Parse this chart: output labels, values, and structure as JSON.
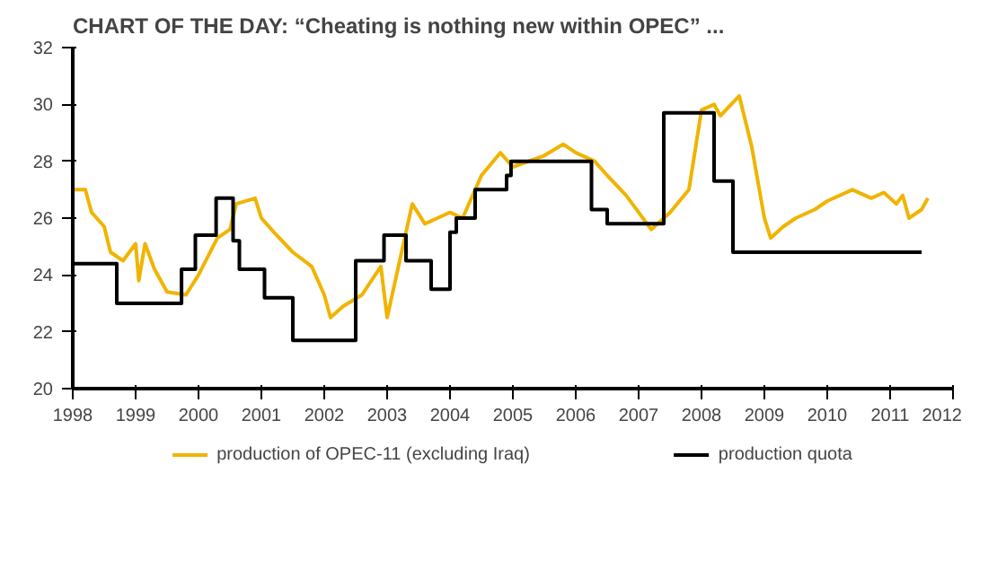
{
  "chart_data": {
    "type": "line",
    "title": "CHART OF THE DAY: “Cheating is nothing new within OPEC” ...",
    "xlim": [
      1998,
      2012
    ],
    "xticks": [
      1998,
      1999,
      2000,
      2001,
      2002,
      2003,
      2004,
      2005,
      2006,
      2007,
      2008,
      2009,
      2010,
      2011,
      2012
    ],
    "ylim": [
      20,
      32
    ],
    "yticks": [
      20,
      22,
      24,
      26,
      28,
      30,
      32
    ],
    "grid": false,
    "legend": "bottom",
    "marker": "none",
    "line_style": "solid",
    "series": [
      {
        "name": "production of OPEC-11 (excluding Iraq)",
        "color": "#f0b400",
        "x": [
          1998.0,
          1998.2,
          1998.3,
          1998.5,
          1998.6,
          1998.8,
          1999.0,
          1999.05,
          1999.15,
          1999.3,
          1999.5,
          1999.8,
          2000.0,
          2000.3,
          2000.5,
          2000.6,
          2000.9,
          2001.0,
          2001.2,
          2001.5,
          2001.8,
          2002.0,
          2002.1,
          2002.3,
          2002.6,
          2002.9,
          2003.0,
          2003.2,
          2003.4,
          2003.6,
          2003.8,
          2004.0,
          2004.2,
          2004.5,
          2004.8,
          2005.0,
          2005.5,
          2005.8,
          2006.0,
          2006.3,
          2006.5,
          2006.8,
          2007.0,
          2007.2,
          2007.5,
          2007.8,
          2008.0,
          2008.2,
          2008.3,
          2008.6,
          2008.8,
          2009.0,
          2009.1,
          2009.3,
          2009.5,
          2009.8,
          2010.0,
          2010.4,
          2010.7,
          2010.9,
          2011.1,
          2011.2,
          2011.3,
          2011.5,
          2011.6
        ],
        "values": [
          27.0,
          27.0,
          26.2,
          25.7,
          24.8,
          24.5,
          25.1,
          23.8,
          25.1,
          24.2,
          23.4,
          23.3,
          24.0,
          25.3,
          25.6,
          26.5,
          26.7,
          26.0,
          25.5,
          24.8,
          24.3,
          23.3,
          22.5,
          22.9,
          23.3,
          24.3,
          22.5,
          24.5,
          26.5,
          25.8,
          26.0,
          26.2,
          26.0,
          27.5,
          28.3,
          27.8,
          28.2,
          28.6,
          28.3,
          28.0,
          27.5,
          26.8,
          26.2,
          25.6,
          26.2,
          27.0,
          29.8,
          30.0,
          29.6,
          30.3,
          28.5,
          26.0,
          25.3,
          25.7,
          26.0,
          26.3,
          26.6,
          27.0,
          26.7,
          26.9,
          26.5,
          26.8,
          26.0,
          26.3,
          26.7
        ]
      },
      {
        "name": "production quota",
        "color": "#000000",
        "type": "step",
        "x": [
          1998.0,
          1998.7,
          1999.73,
          1999.95,
          2000.28,
          2000.55,
          2000.65,
          2001.05,
          2001.5,
          2002.5,
          2002.95,
          2003.3,
          2003.7,
          2004.0,
          2004.1,
          2004.4,
          2004.9,
          2004.97,
          2006.25,
          2006.5,
          2007.4,
          2008.2,
          2008.5,
          2011.5
        ],
        "values": [
          24.4,
          23.0,
          24.2,
          25.4,
          26.7,
          25.2,
          24.2,
          23.2,
          21.7,
          24.5,
          25.4,
          24.5,
          23.5,
          25.5,
          26.0,
          27.0,
          27.5,
          28.0,
          26.3,
          25.8,
          29.7,
          27.3,
          24.8,
          24.8
        ]
      }
    ]
  }
}
